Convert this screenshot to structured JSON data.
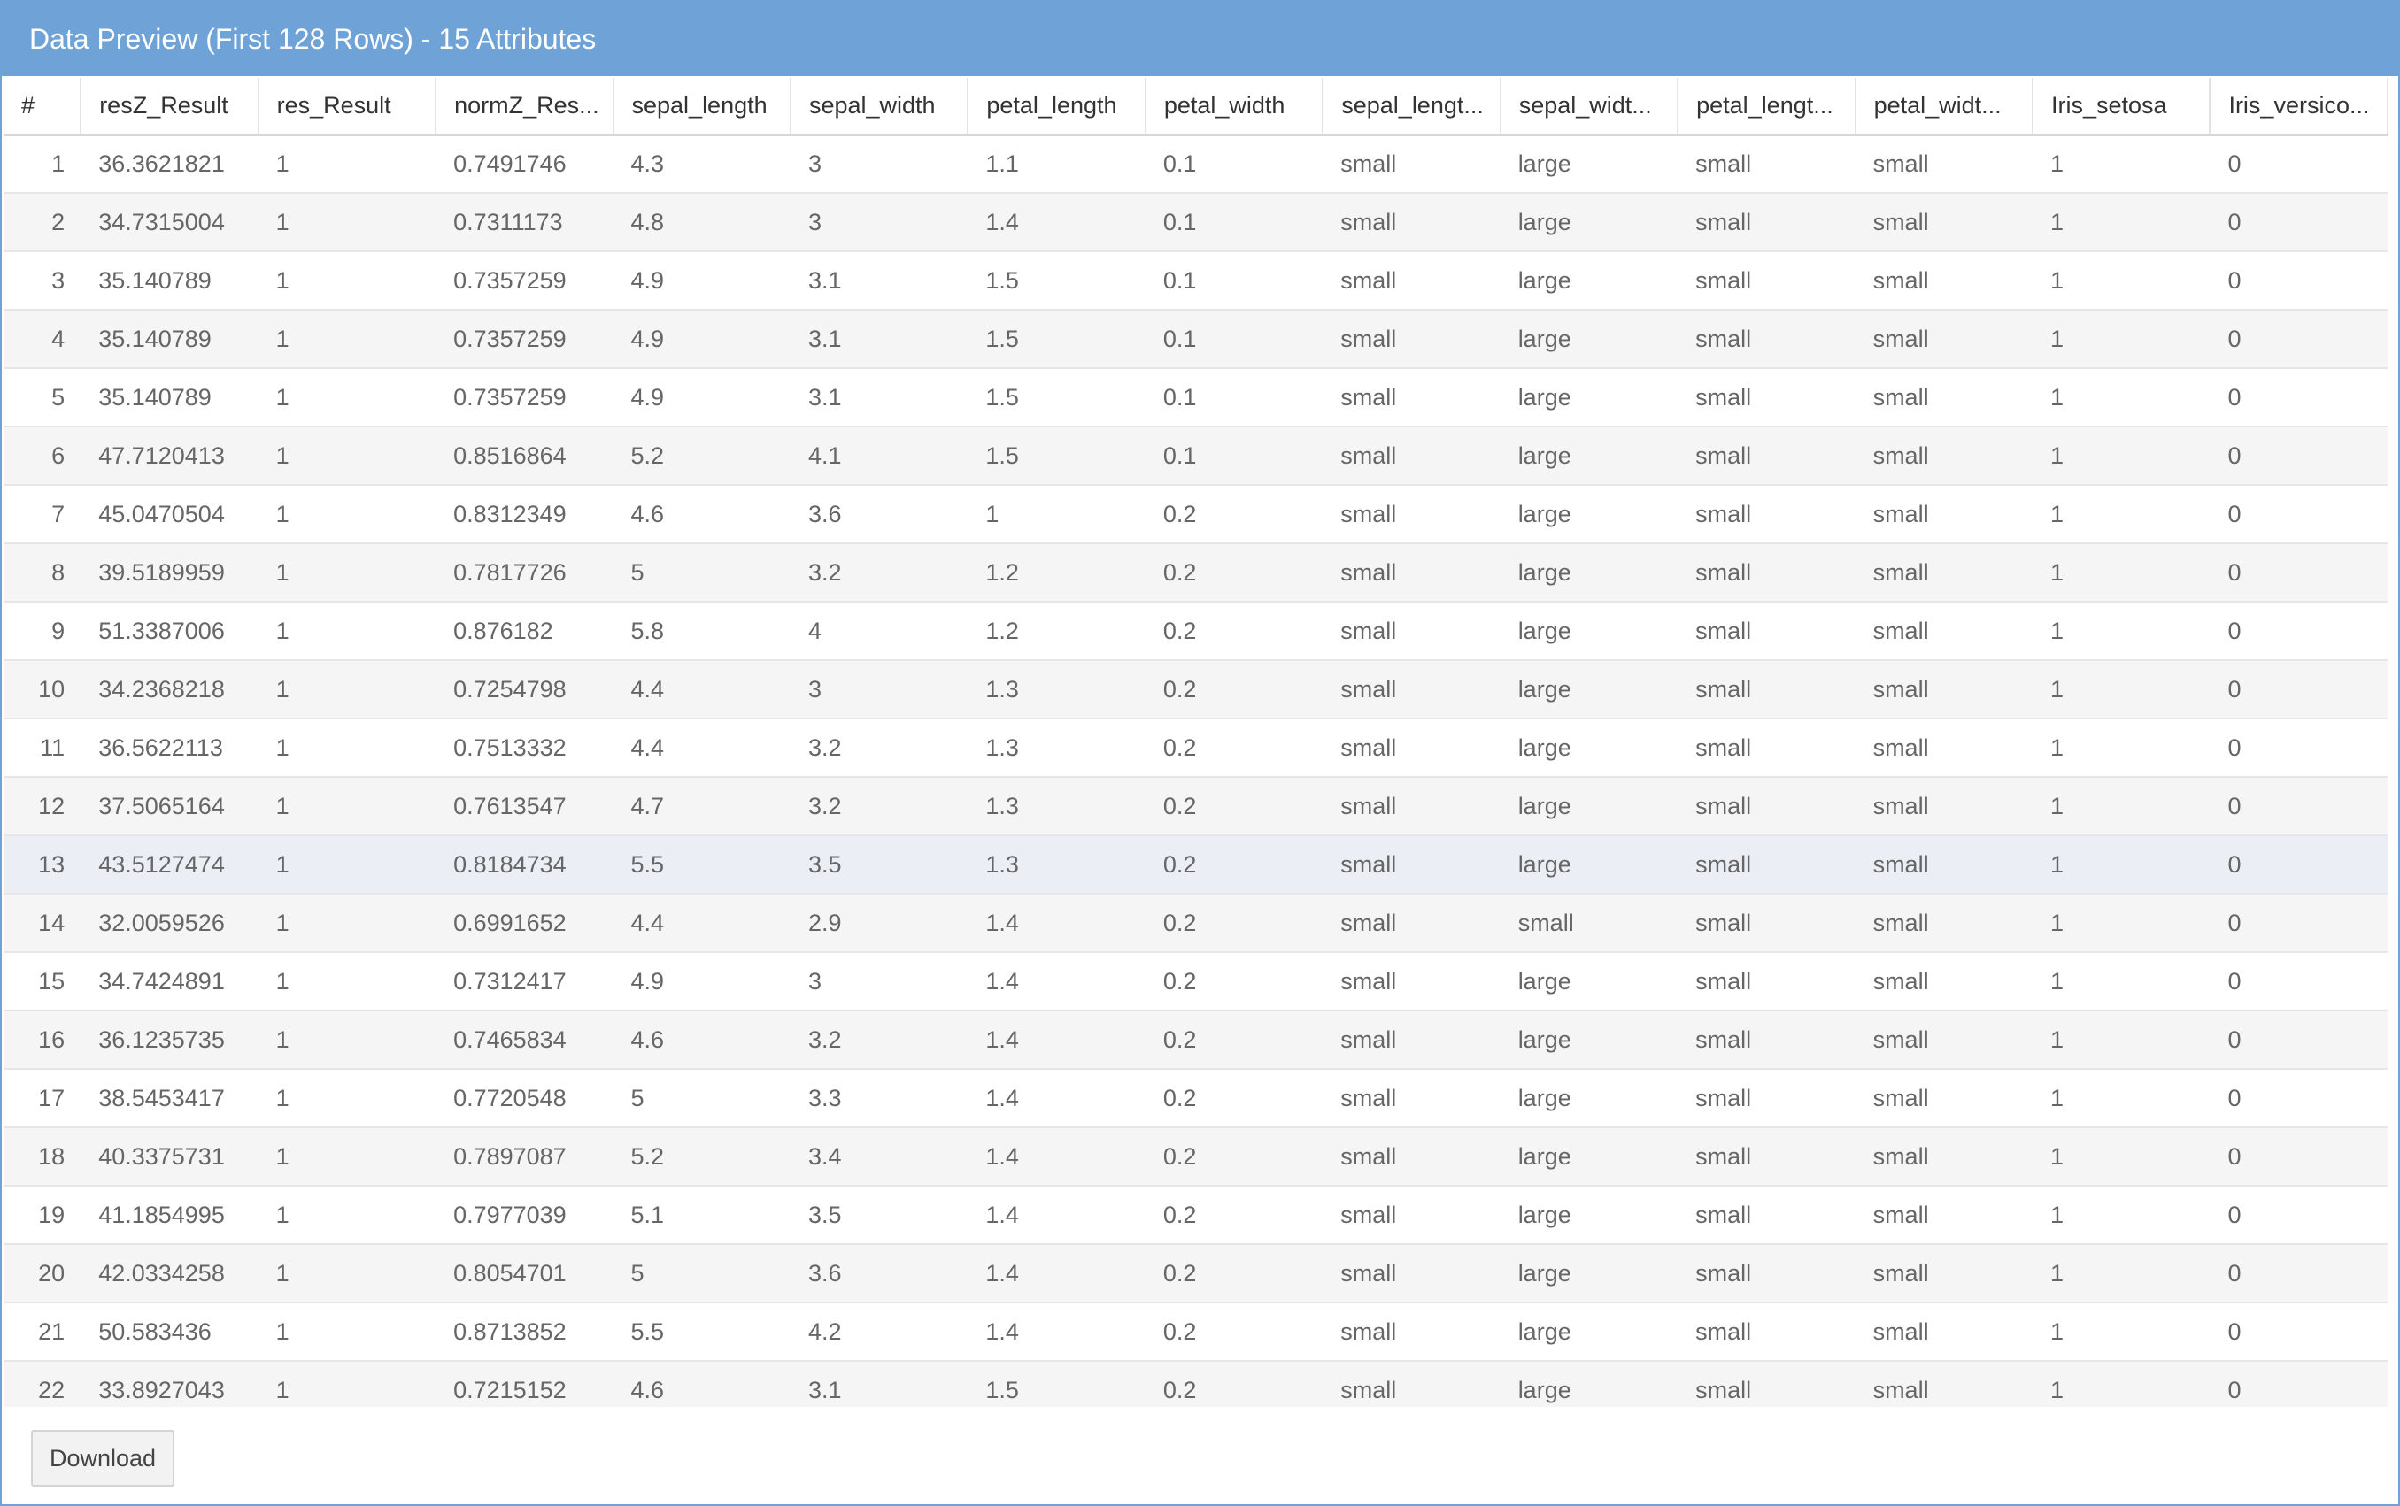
{
  "panel": {
    "title": "Data Preview (First 128 Rows) - 15 Attributes",
    "download_label": "Download"
  },
  "table": {
    "columns": [
      "#",
      "resZ_Result",
      "res_Result",
      "normZ_Res...",
      "sepal_length",
      "sepal_width",
      "petal_length",
      "petal_width",
      "sepal_lengt...",
      "sepal_widt...",
      "petal_lengt...",
      "petal_widt...",
      "Iris_setosa",
      "Iris_versico..."
    ],
    "highlighted_row": 13,
    "rows": [
      [
        "1",
        "36.3621821",
        "1",
        "0.7491746",
        "4.3",
        "3",
        "1.1",
        "0.1",
        "small",
        "large",
        "small",
        "small",
        "1",
        "0"
      ],
      [
        "2",
        "34.7315004",
        "1",
        "0.7311173",
        "4.8",
        "3",
        "1.4",
        "0.1",
        "small",
        "large",
        "small",
        "small",
        "1",
        "0"
      ],
      [
        "3",
        "35.140789",
        "1",
        "0.7357259",
        "4.9",
        "3.1",
        "1.5",
        "0.1",
        "small",
        "large",
        "small",
        "small",
        "1",
        "0"
      ],
      [
        "4",
        "35.140789",
        "1",
        "0.7357259",
        "4.9",
        "3.1",
        "1.5",
        "0.1",
        "small",
        "large",
        "small",
        "small",
        "1",
        "0"
      ],
      [
        "5",
        "35.140789",
        "1",
        "0.7357259",
        "4.9",
        "3.1",
        "1.5",
        "0.1",
        "small",
        "large",
        "small",
        "small",
        "1",
        "0"
      ],
      [
        "6",
        "47.7120413",
        "1",
        "0.8516864",
        "5.2",
        "4.1",
        "1.5",
        "0.1",
        "small",
        "large",
        "small",
        "small",
        "1",
        "0"
      ],
      [
        "7",
        "45.0470504",
        "1",
        "0.8312349",
        "4.6",
        "3.6",
        "1",
        "0.2",
        "small",
        "large",
        "small",
        "small",
        "1",
        "0"
      ],
      [
        "8",
        "39.5189959",
        "1",
        "0.7817726",
        "5",
        "3.2",
        "1.2",
        "0.2",
        "small",
        "large",
        "small",
        "small",
        "1",
        "0"
      ],
      [
        "9",
        "51.3387006",
        "1",
        "0.876182",
        "5.8",
        "4",
        "1.2",
        "0.2",
        "small",
        "large",
        "small",
        "small",
        "1",
        "0"
      ],
      [
        "10",
        "34.2368218",
        "1",
        "0.7254798",
        "4.4",
        "3",
        "1.3",
        "0.2",
        "small",
        "large",
        "small",
        "small",
        "1",
        "0"
      ],
      [
        "11",
        "36.5622113",
        "1",
        "0.7513332",
        "4.4",
        "3.2",
        "1.3",
        "0.2",
        "small",
        "large",
        "small",
        "small",
        "1",
        "0"
      ],
      [
        "12",
        "37.5065164",
        "1",
        "0.7613547",
        "4.7",
        "3.2",
        "1.3",
        "0.2",
        "small",
        "large",
        "small",
        "small",
        "1",
        "0"
      ],
      [
        "13",
        "43.5127474",
        "1",
        "0.8184734",
        "5.5",
        "3.5",
        "1.3",
        "0.2",
        "small",
        "large",
        "small",
        "small",
        "1",
        "0"
      ],
      [
        "14",
        "32.0059526",
        "1",
        "0.6991652",
        "4.4",
        "2.9",
        "1.4",
        "0.2",
        "small",
        "small",
        "small",
        "small",
        "1",
        "0"
      ],
      [
        "15",
        "34.7424891",
        "1",
        "0.7312417",
        "4.9",
        "3",
        "1.4",
        "0.2",
        "small",
        "large",
        "small",
        "small",
        "1",
        "0"
      ],
      [
        "16",
        "36.1235735",
        "1",
        "0.7465834",
        "4.6",
        "3.2",
        "1.4",
        "0.2",
        "small",
        "large",
        "small",
        "small",
        "1",
        "0"
      ],
      [
        "17",
        "38.5453417",
        "1",
        "0.7720548",
        "5",
        "3.3",
        "1.4",
        "0.2",
        "small",
        "large",
        "small",
        "small",
        "1",
        "0"
      ],
      [
        "18",
        "40.3375731",
        "1",
        "0.7897087",
        "5.2",
        "3.4",
        "1.4",
        "0.2",
        "small",
        "large",
        "small",
        "small",
        "1",
        "0"
      ],
      [
        "19",
        "41.1854995",
        "1",
        "0.7977039",
        "5.1",
        "3.5",
        "1.4",
        "0.2",
        "small",
        "large",
        "small",
        "small",
        "1",
        "0"
      ],
      [
        "20",
        "42.0334258",
        "1",
        "0.8054701",
        "5",
        "3.6",
        "1.4",
        "0.2",
        "small",
        "large",
        "small",
        "small",
        "1",
        "0"
      ],
      [
        "21",
        "50.583436",
        "1",
        "0.8713852",
        "5.5",
        "4.2",
        "1.4",
        "0.2",
        "small",
        "large",
        "small",
        "small",
        "1",
        "0"
      ],
      [
        "22",
        "33.8927043",
        "1",
        "0.7215152",
        "4.6",
        "3.1",
        "1.5",
        "0.2",
        "small",
        "large",
        "small",
        "small",
        "1",
        "0"
      ]
    ]
  }
}
